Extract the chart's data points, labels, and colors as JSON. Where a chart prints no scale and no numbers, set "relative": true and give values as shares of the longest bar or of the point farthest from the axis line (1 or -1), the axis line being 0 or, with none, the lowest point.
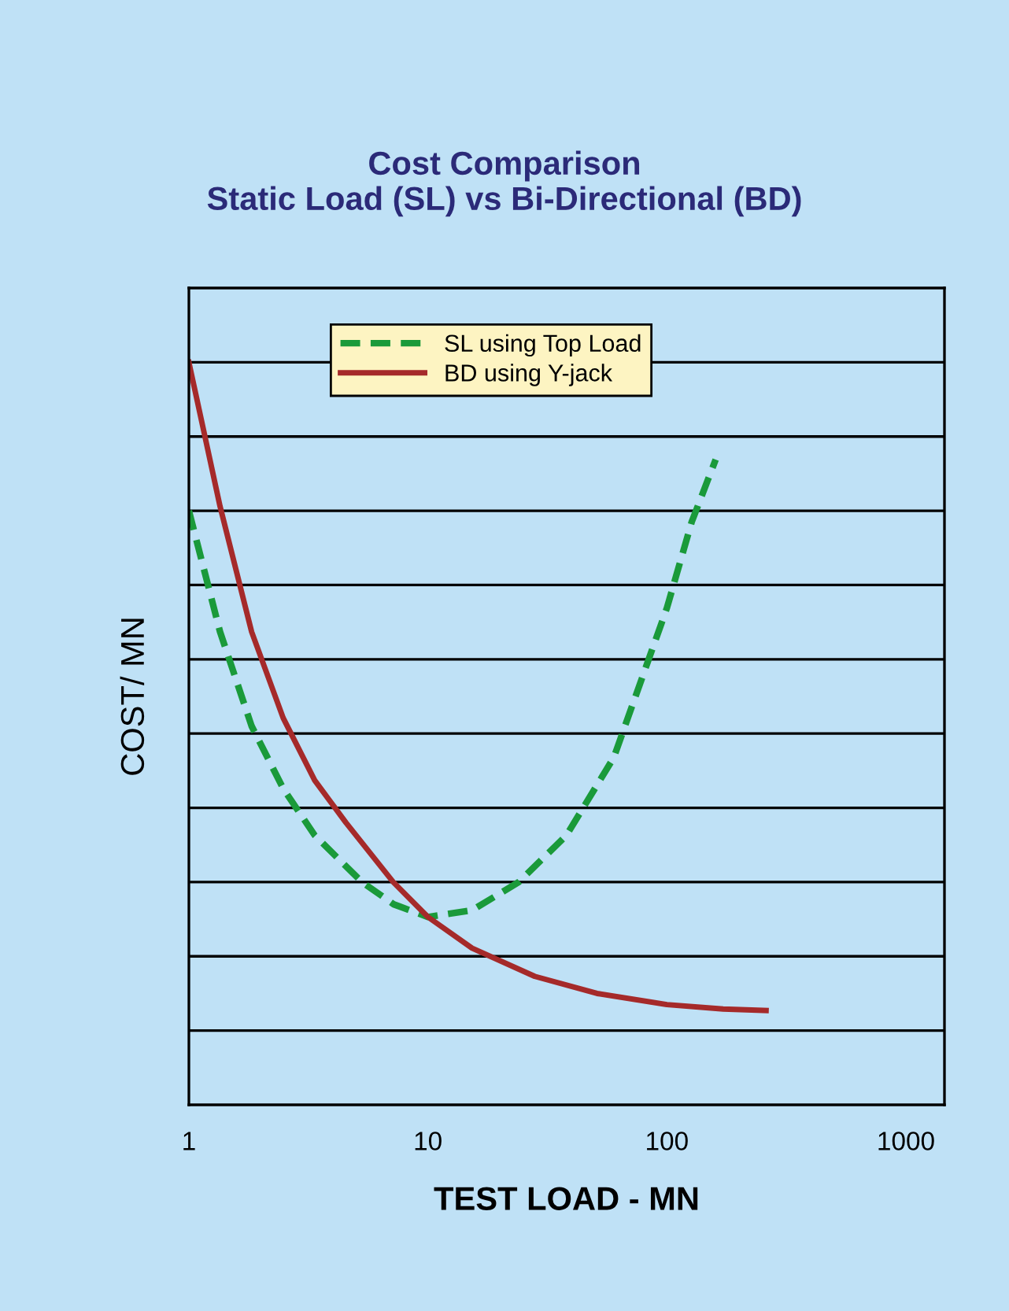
{
  "chart_data": {
    "type": "line",
    "title": "Cost Comparison\nStatic Load (SL) vs Bi-Directional (BD)",
    "xlabel": "TEST LOAD - MN",
    "ylabel": "COST/ MN",
    "relative": true,
    "log": "x",
    "xlim": [
      1,
      1450
    ],
    "xticks": [
      1,
      10,
      100,
      1000
    ],
    "grid": "y",
    "legend": "top",
    "series": [
      {
        "name": "SL using Top Load",
        "color": "#1a9a3a",
        "line_style": "dashed",
        "x": [
          1,
          1.35,
          1.83,
          2.48,
          3.36,
          5.3,
          7.2,
          10,
          15.3,
          24,
          38,
          60,
          100,
          127,
          160
        ],
        "values": [
          0.8,
          0.637,
          0.51,
          0.426,
          0.363,
          0.3,
          0.27,
          0.253,
          0.262,
          0.3,
          0.363,
          0.468,
          0.669,
          0.785,
          0.869
        ]
      },
      {
        "name": "BD using Y-jack",
        "color": "#a52a2a",
        "line_style": "solid",
        "x": [
          1,
          1.35,
          1.83,
          2.48,
          3.36,
          4.54,
          7.16,
          10,
          15.3,
          28,
          51,
          100,
          172,
          260
        ],
        "values": [
          1.0,
          0.806,
          0.637,
          0.521,
          0.437,
          0.38,
          0.3,
          0.253,
          0.211,
          0.173,
          0.15,
          0.135,
          0.129,
          0.127
        ]
      }
    ]
  }
}
